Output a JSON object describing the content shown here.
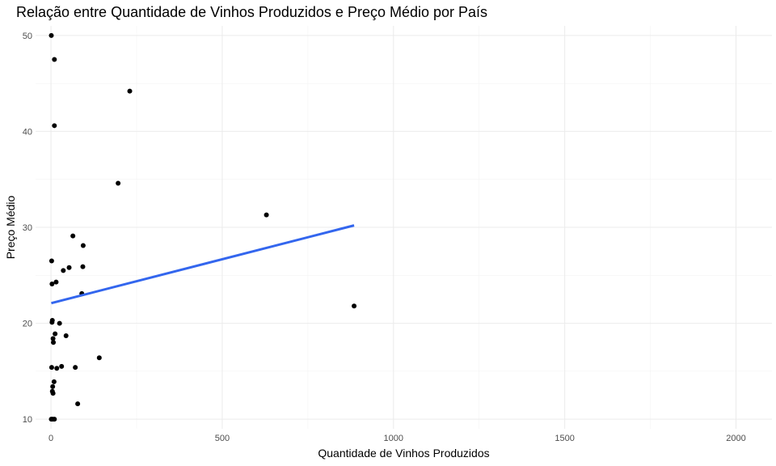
{
  "chart_data": {
    "type": "scatter",
    "title": "Relação entre Quantidade de Vinhos Produzidos e Preço Médio por País",
    "xlabel": "Quantidade de Vinhos Produzidos",
    "ylabel": "Preço Médio",
    "xlim": [
      -45,
      2105
    ],
    "ylim": [
      9,
      51
    ],
    "x_ticks": [
      0,
      500,
      1000,
      1500,
      2000
    ],
    "x_tick_labels": [
      "0",
      "500",
      "1000",
      "1500",
      "2000"
    ],
    "y_ticks": [
      10,
      20,
      30,
      40,
      50
    ],
    "y_tick_labels": [
      "10",
      "20",
      "30",
      "40",
      "50"
    ],
    "grid": true,
    "legend": "none",
    "point_color": "#000000",
    "trend_color": "#3366ee",
    "points": [
      {
        "x": 1,
        "y": 50.0
      },
      {
        "x": 10,
        "y": 47.5
      },
      {
        "x": 230,
        "y": 44.2
      },
      {
        "x": 10,
        "y": 40.6
      },
      {
        "x": 196,
        "y": 34.6
      },
      {
        "x": 629,
        "y": 31.3
      },
      {
        "x": 64,
        "y": 29.1
      },
      {
        "x": 94,
        "y": 28.1
      },
      {
        "x": 2,
        "y": 26.5
      },
      {
        "x": 93,
        "y": 25.9
      },
      {
        "x": 53,
        "y": 25.8
      },
      {
        "x": 36,
        "y": 25.5
      },
      {
        "x": 15,
        "y": 24.3
      },
      {
        "x": 3,
        "y": 24.1
      },
      {
        "x": 90,
        "y": 23.1
      },
      {
        "x": 885,
        "y": 21.8
      },
      {
        "x": 4,
        "y": 20.3
      },
      {
        "x": 3,
        "y": 20.1
      },
      {
        "x": 25,
        "y": 20.0
      },
      {
        "x": 12,
        "y": 18.9
      },
      {
        "x": 44,
        "y": 18.7
      },
      {
        "x": 6,
        "y": 18.4
      },
      {
        "x": 7,
        "y": 18.0
      },
      {
        "x": 141,
        "y": 16.4
      },
      {
        "x": 31,
        "y": 15.5
      },
      {
        "x": 2,
        "y": 15.4
      },
      {
        "x": 17,
        "y": 15.3
      },
      {
        "x": 71,
        "y": 15.4
      },
      {
        "x": 9,
        "y": 13.9
      },
      {
        "x": 5,
        "y": 13.4
      },
      {
        "x": 4,
        "y": 12.9
      },
      {
        "x": 6,
        "y": 12.7
      },
      {
        "x": 78,
        "y": 11.6
      },
      {
        "x": 1,
        "y": 10.0
      },
      {
        "x": 5,
        "y": 10.0
      },
      {
        "x": 10,
        "y": 10.0
      }
    ],
    "trend_line": {
      "x": [
        1,
        885
      ],
      "y": [
        22.1,
        30.2
      ]
    }
  }
}
